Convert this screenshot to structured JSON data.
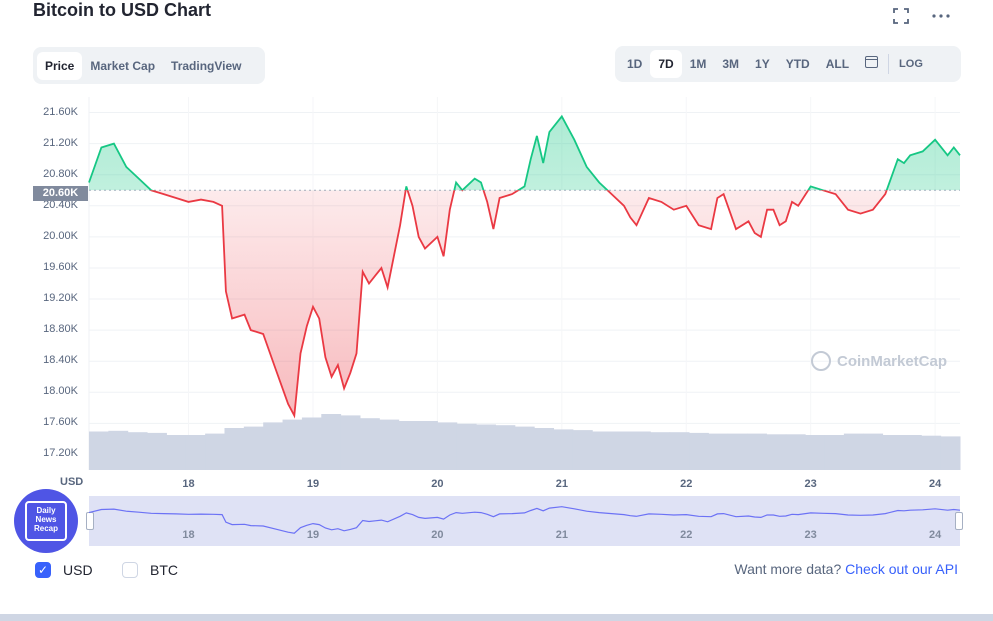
{
  "title": "Bitcoin to USD Chart",
  "header_icons": {
    "fullscreen": "fullscreen-icon",
    "more": "more-icon"
  },
  "view_tabs": [
    {
      "label": "Price",
      "active": true
    },
    {
      "label": "Market Cap",
      "active": false
    },
    {
      "label": "TradingView",
      "active": false
    }
  ],
  "range_tabs": [
    {
      "label": "1D",
      "active": false
    },
    {
      "label": "7D",
      "active": true
    },
    {
      "label": "1M",
      "active": false
    },
    {
      "label": "3M",
      "active": false
    },
    {
      "label": "1Y",
      "active": false
    },
    {
      "label": "YTD",
      "active": false
    },
    {
      "label": "ALL",
      "active": false
    }
  ],
  "calendar_icon": "calendar-icon",
  "log_label": "LOG",
  "current_price_label": "20.60K",
  "currency_axis_label": "USD",
  "watermark": "CoinMarketCap",
  "badge_text": "Daily News Recap",
  "checkboxes": [
    {
      "label": "USD",
      "checked": true
    },
    {
      "label": "BTC",
      "checked": false
    }
  ],
  "api_text": "Want more data?",
  "api_link": "Check out our API",
  "colors": {
    "up": "#16c784",
    "down": "#ea3943",
    "accent": "#3861fb",
    "navigator": "#6c72f5"
  },
  "chart_data": {
    "type": "line",
    "ylim": [
      17000,
      21800
    ],
    "yticks": [
      "21.60K",
      "21.20K",
      "20.80K",
      "20.40K",
      "20.00K",
      "19.60K",
      "19.20K",
      "18.80K",
      "18.40K",
      "18.00K",
      "17.60K",
      "17.20K"
    ],
    "ytick_values": [
      21600,
      21200,
      20800,
      20400,
      20000,
      19600,
      19200,
      18800,
      18400,
      18000,
      17600,
      17200
    ],
    "xticks": [
      "18",
      "19",
      "20",
      "21",
      "22",
      "23",
      "24"
    ],
    "xtick_values": [
      18,
      19,
      20,
      21,
      22,
      23,
      24
    ],
    "xlim": [
      17.2,
      24.2
    ],
    "baseline": 20600,
    "series": [
      {
        "x": [
          17.2,
          17.3,
          17.4,
          17.5,
          17.6,
          17.7,
          17.8,
          17.9,
          18.0,
          18.1,
          18.2,
          18.27,
          18.3,
          18.35,
          18.45,
          18.5,
          18.6,
          18.7,
          18.8,
          18.85,
          18.9,
          18.95,
          19.0,
          19.05,
          19.1,
          19.15,
          19.2,
          19.25,
          19.3,
          19.35,
          19.4,
          19.45,
          19.5,
          19.55,
          19.6,
          19.7,
          19.75,
          19.8,
          19.85,
          19.9,
          20.0,
          20.05,
          20.1,
          20.15,
          20.2,
          20.3,
          20.35,
          20.4,
          20.45,
          20.5,
          20.6,
          20.7,
          20.75,
          20.8,
          20.85,
          20.9,
          21.0,
          21.1,
          21.2,
          21.3,
          21.4,
          21.5,
          21.55,
          21.6,
          21.7,
          21.8,
          21.9,
          22.0,
          22.1,
          22.2,
          22.25,
          22.3,
          22.4,
          22.5,
          22.55,
          22.6,
          22.65,
          22.7,
          22.75,
          22.8,
          22.85,
          22.9,
          23.0,
          23.1,
          23.2,
          23.3,
          23.4,
          23.5,
          23.6,
          23.7,
          23.75,
          23.8,
          23.9,
          24.0,
          24.1,
          24.15,
          24.2
        ],
        "values": [
          20700,
          21150,
          21200,
          20900,
          20750,
          20600,
          20550,
          20500,
          20450,
          20480,
          20450,
          20400,
          19300,
          18950,
          19000,
          18800,
          18750,
          18300,
          17850,
          17700,
          18500,
          18850,
          19100,
          18950,
          18450,
          18200,
          18350,
          18050,
          18250,
          18500,
          19550,
          19400,
          19500,
          19600,
          19350,
          20150,
          20650,
          20400,
          20000,
          19850,
          20000,
          19750,
          20350,
          20700,
          20600,
          20750,
          20700,
          20450,
          20100,
          20500,
          20550,
          20650,
          21000,
          21300,
          20950,
          21350,
          21550,
          21250,
          20900,
          20700,
          20550,
          20400,
          20250,
          20150,
          20500,
          20450,
          20350,
          20400,
          20150,
          20100,
          20500,
          20550,
          20100,
          20200,
          20050,
          20000,
          20350,
          20350,
          20150,
          20200,
          20450,
          20400,
          20650,
          20600,
          20550,
          20350,
          20300,
          20350,
          20550,
          21000,
          20950,
          21050,
          21100,
          21250,
          21050,
          21150,
          21050
        ]
      }
    ],
    "volume": [
      0.55,
      0.56,
      0.54,
      0.53,
      0.5,
      0.5,
      0.52,
      0.6,
      0.62,
      0.68,
      0.72,
      0.75,
      0.8,
      0.78,
      0.74,
      0.72,
      0.7,
      0.7,
      0.68,
      0.66,
      0.65,
      0.64,
      0.62,
      0.6,
      0.58,
      0.57,
      0.55,
      0.55,
      0.55,
      0.54,
      0.54,
      0.53,
      0.52,
      0.52,
      0.52,
      0.51,
      0.51,
      0.5,
      0.5,
      0.52,
      0.52,
      0.5,
      0.5,
      0.49,
      0.48
    ]
  }
}
